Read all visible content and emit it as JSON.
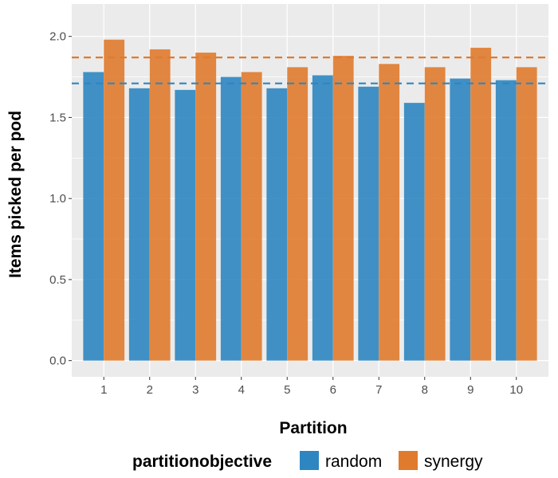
{
  "chart_data": {
    "type": "bar",
    "xlabel": "Partition",
    "ylabel": "Items picked per pod",
    "categories": [
      "1",
      "2",
      "3",
      "4",
      "5",
      "6",
      "7",
      "8",
      "9",
      "10"
    ],
    "series": [
      {
        "name": "random",
        "color": "#2E86C1",
        "values": [
          1.78,
          1.68,
          1.67,
          1.75,
          1.68,
          1.76,
          1.69,
          1.59,
          1.74,
          1.73
        ],
        "mean_line": 1.71
      },
      {
        "name": "synergy",
        "color": "#E07B2E",
        "values": [
          1.98,
          1.92,
          1.9,
          1.78,
          1.81,
          1.88,
          1.83,
          1.81,
          1.93,
          1.81
        ],
        "mean_line": 1.87
      }
    ],
    "yticks": [
      "0.0",
      "0.5",
      "1.0",
      "1.5",
      "2.0"
    ],
    "ylim": [
      -0.1,
      2.2
    ],
    "grid": true,
    "legend": {
      "title": "partitionobjective",
      "placement": "bottom"
    }
  }
}
